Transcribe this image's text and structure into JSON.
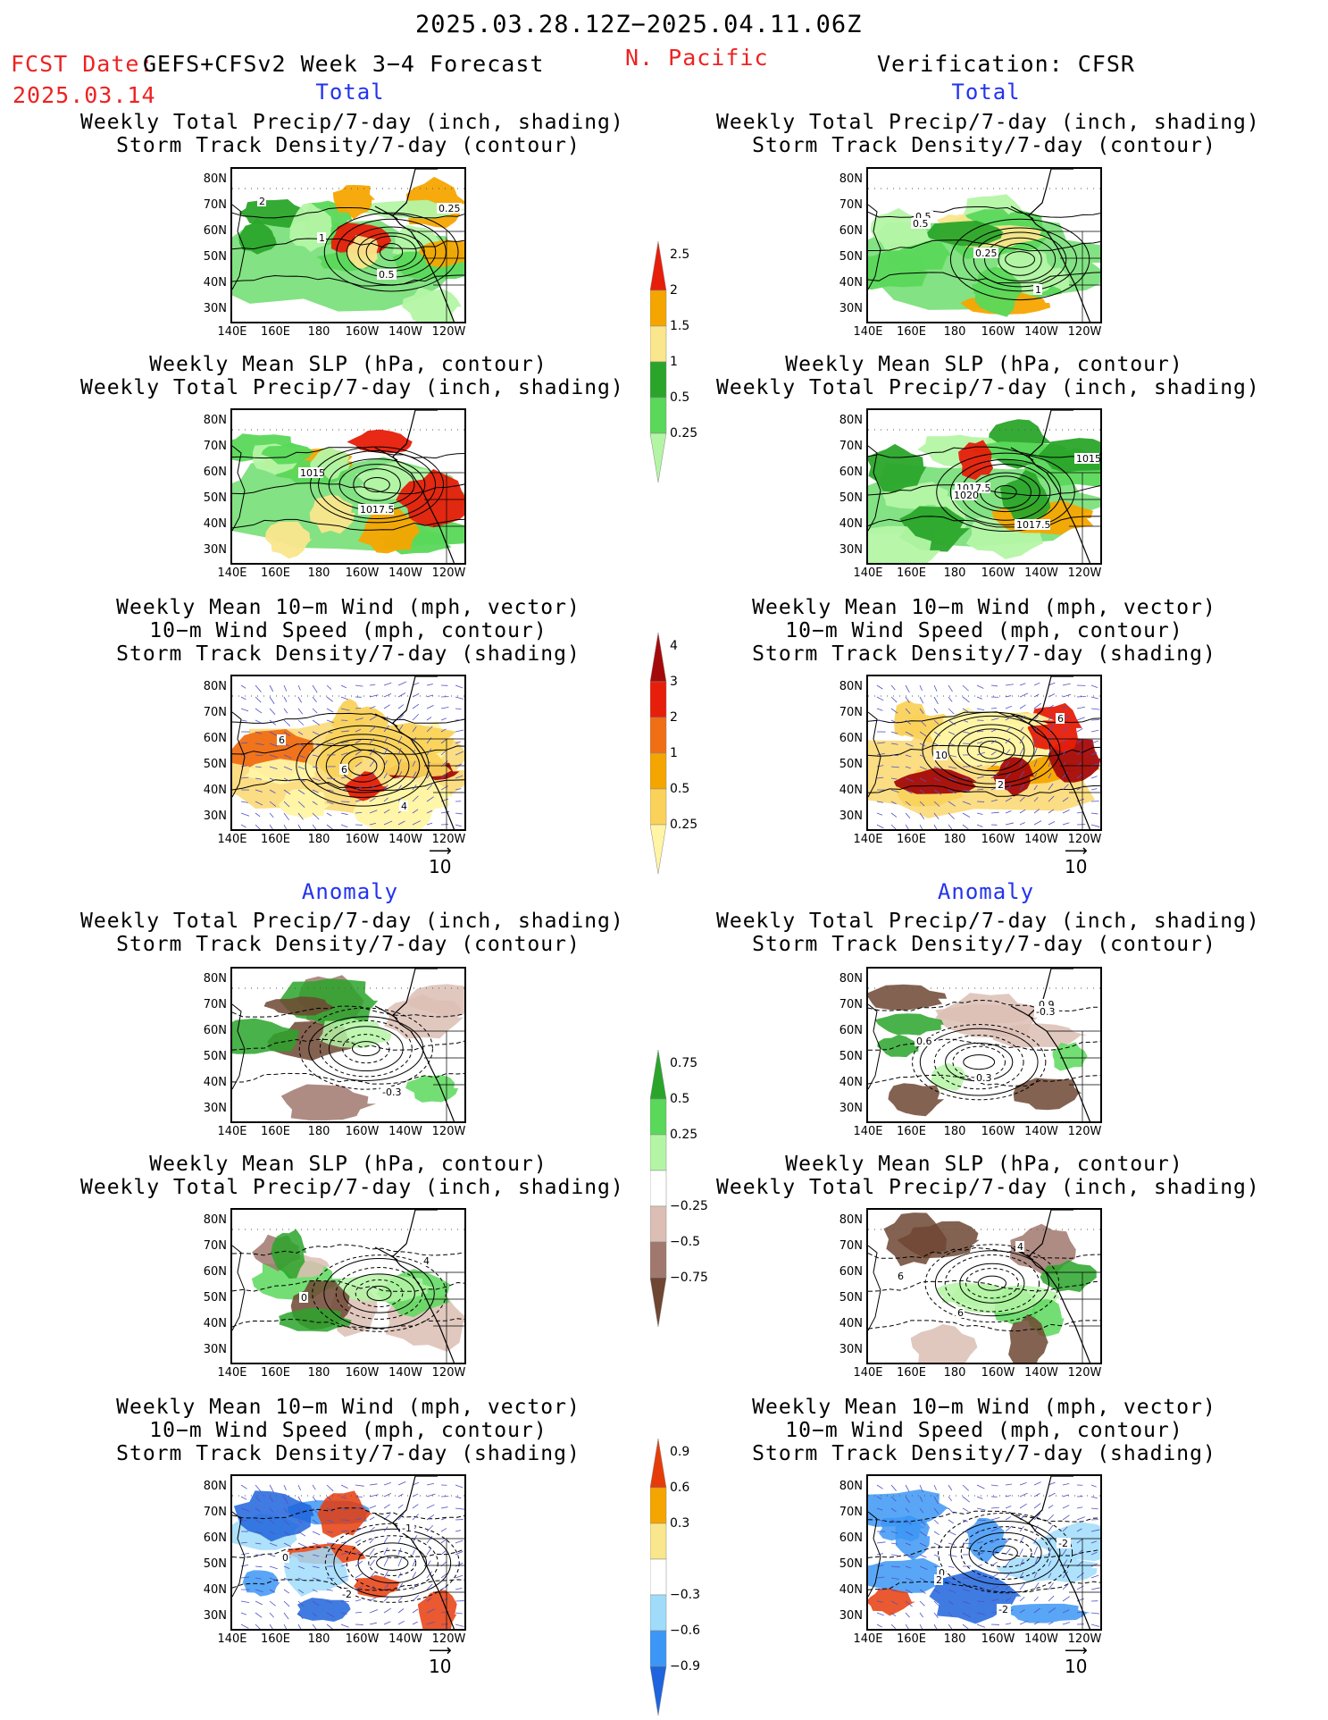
{
  "header": {
    "date_range": "2025.03.28.12Z−2025.04.11.06Z",
    "fcst_label": "FCST Date:",
    "fcst_model": "GEFS+CFSv2 Week 3−4 Forecast",
    "fcst_date": "2025.03.14",
    "region": "N. Pacific",
    "verification": "Verification: CFSR"
  },
  "sections": {
    "total": "Total",
    "anomaly": "Anomaly"
  },
  "panel_titles": {
    "precip_storm": [
      "Weekly Total Precip/7-day (inch, shading)",
      "Storm Track Density/7-day (contour)"
    ],
    "slp_precip": [
      "Weekly Mean SLP (hPa, contour)",
      "Weekly Total Precip/7-day (inch, shading)"
    ],
    "wind_storm": [
      "Weekly Mean 10−m Wind (mph, vector)",
      "10−m Wind Speed (mph, contour)",
      "Storm Track Density/7-day (shading)"
    ]
  },
  "axes": {
    "lat_ticks": [
      "80N",
      "70N",
      "60N",
      "50N",
      "40N",
      "30N"
    ],
    "lon_ticks": [
      "140E",
      "160E",
      "180",
      "160W",
      "140W",
      "120W"
    ],
    "ref_vector": "10"
  },
  "colors": {
    "precip_total": [
      "#b4f5a5",
      "#5ad85a",
      "#2aa52a",
      "#fae68c",
      "#f5a500",
      "#e61e0a"
    ],
    "storm_total": [
      "#fff5a5",
      "#fad25a",
      "#f5a500",
      "#f06e14",
      "#e61e0a",
      "#a50a0a"
    ],
    "precip_anom": [
      "#6e4632",
      "#a0786e",
      "#dcbeb4",
      "#ffffff",
      "#b4f5a5",
      "#5ad85a",
      "#2aa52a"
    ],
    "storm_anom": [
      "#1e64dc",
      "#3c96f5",
      "#a0dcfa",
      "#ffffff",
      "#fae68c",
      "#f5a500",
      "#e63c0a"
    ]
  },
  "chart_data": [
    {
      "type": "contour-map",
      "panel": "total-precip-storm-fcst",
      "region": "N. Pacific",
      "shading": "Weekly Total Precip/7-day (inch)",
      "contour": "Storm Track Density/7-day",
      "contour_labels": [
        "2",
        "1",
        "0.5",
        "0.25"
      ]
    },
    {
      "type": "contour-map",
      "panel": "total-precip-storm-cfsr",
      "region": "N. Pacific",
      "shading": "Weekly Total Precip/7-day (inch)",
      "contour": "Storm Track Density/7-day",
      "contour_labels": [
        "0.5",
        "0.25",
        "1",
        "0.5"
      ]
    },
    {
      "type": "contour-map",
      "panel": "total-slp-precip-fcst",
      "region": "N. Pacific",
      "shading": "Weekly Total Precip/7-day (inch)",
      "contour": "Weekly Mean SLP (hPa)",
      "contour_labels": [
        "1015",
        "1017.5"
      ]
    },
    {
      "type": "contour-map",
      "panel": "total-slp-precip-cfsr",
      "region": "N. Pacific",
      "shading": "Weekly Total Precip/7-day (inch)",
      "contour": "Weekly Mean SLP (hPa)",
      "contour_labels": [
        "1017.5",
        "1017.5",
        "1015",
        "1020"
      ]
    },
    {
      "type": "contour-map",
      "panel": "total-wind-storm-fcst",
      "region": "N. Pacific",
      "shading": "Storm Track Density/7-day",
      "contour": "10-m Wind Speed (mph)",
      "vectors": "Weekly Mean 10-m Wind (mph)",
      "contour_labels": [
        "6",
        "4",
        "6"
      ]
    },
    {
      "type": "contour-map",
      "panel": "total-wind-storm-cfsr",
      "region": "N. Pacific",
      "shading": "Storm Track Density/7-day",
      "contour": "10-m Wind Speed (mph)",
      "vectors": "Weekly Mean 10-m Wind (mph)",
      "contour_labels": [
        "2",
        "6",
        "10"
      ]
    },
    {
      "type": "contour-map",
      "panel": "anom-precip-storm-fcst",
      "region": "N. Pacific",
      "shading": "Weekly Total Precip/7-day anomaly (inch)",
      "contour": "Storm Track Density/7-day anomaly",
      "contour_labels": [
        "-0.3"
      ]
    },
    {
      "type": "contour-map",
      "panel": "anom-precip-storm-cfsr",
      "region": "N. Pacific",
      "shading": "Weekly Total Precip/7-day anomaly (inch)",
      "contour": "Storm Track Density/7-day anomaly",
      "contour_labels": [
        "0.9",
        "0.6",
        "0.3",
        "-0.3"
      ]
    },
    {
      "type": "contour-map",
      "panel": "anom-slp-precip-fcst",
      "region": "N. Pacific",
      "shading": "Weekly Total Precip/7-day anomaly (inch)",
      "contour": "Weekly Mean SLP anomaly (hPa)",
      "contour_labels": [
        "4",
        "0"
      ]
    },
    {
      "type": "contour-map",
      "panel": "anom-slp-precip-cfsr",
      "region": "N. Pacific",
      "shading": "Weekly Total Precip/7-day anomaly (inch)",
      "contour": "Weekly Mean SLP anomaly (hPa)",
      "contour_labels": [
        "6",
        "6",
        "4"
      ]
    },
    {
      "type": "contour-map",
      "panel": "anom-wind-storm-fcst",
      "region": "N. Pacific",
      "shading": "Storm Track Density/7-day anomaly",
      "contour": "10-m Wind Speed anomaly (mph)",
      "vectors": "Weekly Mean 10-m Wind anomaly (mph)",
      "contour_labels": [
        "0",
        "-2",
        "-1"
      ]
    },
    {
      "type": "contour-map",
      "panel": "anom-wind-storm-cfsr",
      "region": "N. Pacific",
      "shading": "Storm Track Density/7-day anomaly",
      "contour": "10-m Wind Speed anomaly (mph)",
      "vectors": "Weekly Mean 10-m Wind anomaly (mph)",
      "contour_labels": [
        "0",
        "-2",
        "-2",
        "2"
      ]
    },
    {
      "type": "colorbar",
      "for": "Weekly Total Precip/7-day (inch)",
      "levels": [
        "0.25",
        "0.5",
        "1",
        "1.5",
        "2",
        "2.5"
      ]
    },
    {
      "type": "colorbar",
      "for": "Storm Track Density/7-day",
      "levels": [
        "0.25",
        "0.5",
        "1",
        "2",
        "3",
        "4"
      ]
    },
    {
      "type": "colorbar",
      "for": "Weekly Total Precip/7-day anomaly (inch)",
      "levels": [
        "−0.75",
        "−0.5",
        "−0.25",
        "0.25",
        "0.5",
        "0.75"
      ]
    },
    {
      "type": "colorbar",
      "for": "Storm Track Density/7-day anomaly",
      "levels": [
        "−0.9",
        "−0.6",
        "−0.3",
        "0.3",
        "0.6",
        "0.9"
      ]
    }
  ]
}
